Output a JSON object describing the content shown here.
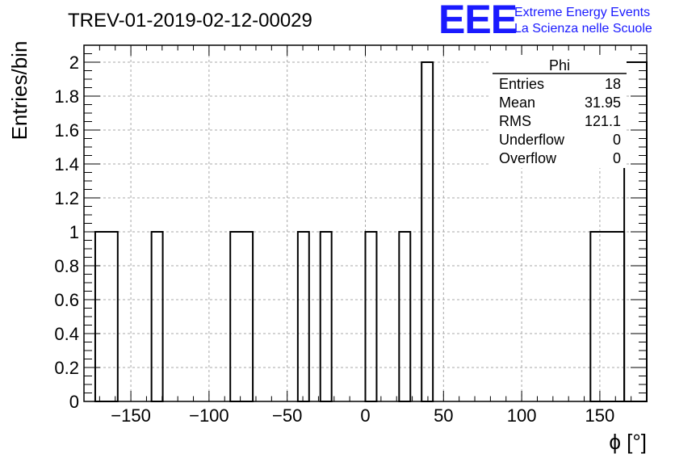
{
  "header": {
    "title": "TREV-01-2019-02-12-00029",
    "logo": "EEE",
    "logo_line1": "Extreme Energy Events",
    "logo_line2": "La Scienza nelle Scuole",
    "brand_color": "#1a1aff"
  },
  "stats_box": {
    "name": "Phi",
    "rows": [
      {
        "label": "Entries",
        "value": "18"
      },
      {
        "label": "Mean",
        "value": "31.95"
      },
      {
        "label": "RMS",
        "value": "121.1"
      },
      {
        "label": "Underflow",
        "value": "0"
      },
      {
        "label": "Overflow",
        "value": "0"
      }
    ]
  },
  "chart_data": {
    "type": "bar",
    "title": "TREV-01-2019-02-12-00029",
    "xlabel": "ϕ [°]",
    "ylabel": "Entries/bin",
    "xlim": [
      -180,
      180
    ],
    "ylim": [
      0,
      2.1
    ],
    "bin_width": 7.2,
    "grid": true,
    "x_ticks": [
      -150,
      -100,
      -50,
      0,
      50,
      100,
      150
    ],
    "x_tick_labels": [
      "−150",
      "−100",
      "−50",
      "0",
      "50",
      "100",
      "150"
    ],
    "y_ticks": [
      0,
      0.2,
      0.4,
      0.6,
      0.8,
      1,
      1.2,
      1.4,
      1.6,
      1.8,
      2
    ],
    "y_tick_labels": [
      "0",
      "0.2",
      "0.4",
      "0.6",
      "0.8",
      "1",
      "1.2",
      "1.4",
      "1.6",
      "1.8",
      "2"
    ],
    "bins": [
      {
        "low": -172.8,
        "high": -158.4,
        "value": 1
      },
      {
        "low": -136.8,
        "high": -129.6,
        "value": 1
      },
      {
        "low": -86.4,
        "high": -72.0,
        "value": 1
      },
      {
        "low": -43.2,
        "high": -36.0,
        "value": 1
      },
      {
        "low": -28.8,
        "high": -21.6,
        "value": 1
      },
      {
        "low": 0.0,
        "high": 7.2,
        "value": 1
      },
      {
        "low": 21.6,
        "high": 28.8,
        "value": 1
      },
      {
        "low": 36.0,
        "high": 43.2,
        "value": 2
      },
      {
        "low": 144.0,
        "high": 165.6,
        "value": 1
      },
      {
        "low": 165.6,
        "high": 180.0,
        "value": 2
      }
    ]
  }
}
